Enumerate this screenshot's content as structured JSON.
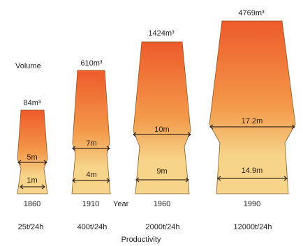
{
  "headings": {
    "volume": "Volume",
    "year": "Year",
    "productivity": "Productivity"
  },
  "colors": {
    "top": "#ee5a2a",
    "middle": "#f39a4a",
    "bottom": "#f6d48a"
  },
  "furnaces": [
    {
      "year": "1860",
      "volume": "84m³",
      "belly": "5m",
      "hearth": "1m",
      "productivity": "25t/24h"
    },
    {
      "year": "1910",
      "volume": "610m³",
      "belly": "7m",
      "hearth": "4m",
      "productivity": "400t/24h"
    },
    {
      "year": "1960",
      "volume": "1424m³",
      "belly": "10m",
      "hearth": "9m",
      "productivity": "2000t/24h"
    },
    {
      "year": "1990",
      "volume": "4769m³",
      "belly": "17.2m",
      "hearth": "14.9m",
      "productivity": "12000t/24h"
    }
  ]
}
